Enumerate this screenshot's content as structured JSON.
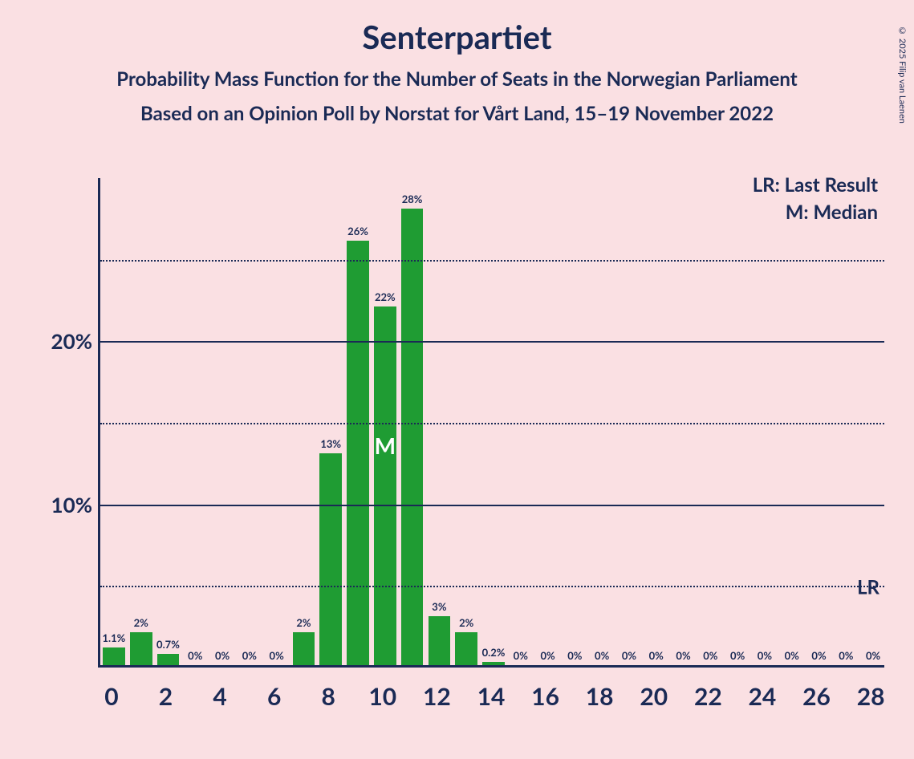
{
  "title": "Senterpartiet",
  "subtitle1": "Probability Mass Function for the Number of Seats in the Norwegian Parliament",
  "subtitle2": "Based on an Opinion Poll by Norstat for Vårt Land, 15–19 November 2022",
  "copyright": "© 2025 Filip van Laenen",
  "legend": {
    "lr": "LR: Last Result",
    "m": "M: Median",
    "lr_short": "LR"
  },
  "chart": {
    "type": "bar",
    "bar_color": "#1f9c33",
    "background_color": "#fae0e3",
    "axis_color": "#1a2a55",
    "grid_color": "#1a2a55",
    "median_text_color": "#ffffff",
    "label_fontsize": 13,
    "xtick_fontsize": 30,
    "ytick_fontsize": 26,
    "x_range": [
      0,
      28
    ],
    "x_ticks": [
      0,
      2,
      4,
      6,
      8,
      10,
      12,
      14,
      16,
      18,
      20,
      22,
      24,
      26,
      28
    ],
    "y_max_percent": 30,
    "y_gridlines": [
      {
        "pct": 5,
        "style": "dotted",
        "label": ""
      },
      {
        "pct": 10,
        "style": "solid",
        "label": "10%"
      },
      {
        "pct": 15,
        "style": "dotted",
        "label": ""
      },
      {
        "pct": 20,
        "style": "solid",
        "label": "20%"
      },
      {
        "pct": 25,
        "style": "dotted",
        "label": ""
      }
    ],
    "lr_line_pct": 4,
    "median_seat": 10,
    "bar_width_ratio": 0.82,
    "bars": [
      {
        "seat": 0,
        "pct": 1.1,
        "label": "1.1%"
      },
      {
        "seat": 1,
        "pct": 2,
        "label": "2%"
      },
      {
        "seat": 2,
        "pct": 0.7,
        "label": "0.7%"
      },
      {
        "seat": 3,
        "pct": 0,
        "label": "0%"
      },
      {
        "seat": 4,
        "pct": 0,
        "label": "0%"
      },
      {
        "seat": 5,
        "pct": 0,
        "label": "0%"
      },
      {
        "seat": 6,
        "pct": 0,
        "label": "0%"
      },
      {
        "seat": 7,
        "pct": 2,
        "label": "2%"
      },
      {
        "seat": 8,
        "pct": 13,
        "label": "13%"
      },
      {
        "seat": 9,
        "pct": 26,
        "label": "26%"
      },
      {
        "seat": 10,
        "pct": 22,
        "label": "22%"
      },
      {
        "seat": 11,
        "pct": 28,
        "label": "28%"
      },
      {
        "seat": 12,
        "pct": 3,
        "label": "3%"
      },
      {
        "seat": 13,
        "pct": 2,
        "label": "2%"
      },
      {
        "seat": 14,
        "pct": 0.2,
        "label": "0.2%"
      },
      {
        "seat": 15,
        "pct": 0,
        "label": "0%"
      },
      {
        "seat": 16,
        "pct": 0,
        "label": "0%"
      },
      {
        "seat": 17,
        "pct": 0,
        "label": "0%"
      },
      {
        "seat": 18,
        "pct": 0,
        "label": "0%"
      },
      {
        "seat": 19,
        "pct": 0,
        "label": "0%"
      },
      {
        "seat": 20,
        "pct": 0,
        "label": "0%"
      },
      {
        "seat": 21,
        "pct": 0,
        "label": "0%"
      },
      {
        "seat": 22,
        "pct": 0,
        "label": "0%"
      },
      {
        "seat": 23,
        "pct": 0,
        "label": "0%"
      },
      {
        "seat": 24,
        "pct": 0,
        "label": "0%"
      },
      {
        "seat": 25,
        "pct": 0,
        "label": "0%"
      },
      {
        "seat": 26,
        "pct": 0,
        "label": "0%"
      },
      {
        "seat": 27,
        "pct": 0,
        "label": "0%"
      },
      {
        "seat": 28,
        "pct": 0,
        "label": "0%"
      }
    ]
  }
}
